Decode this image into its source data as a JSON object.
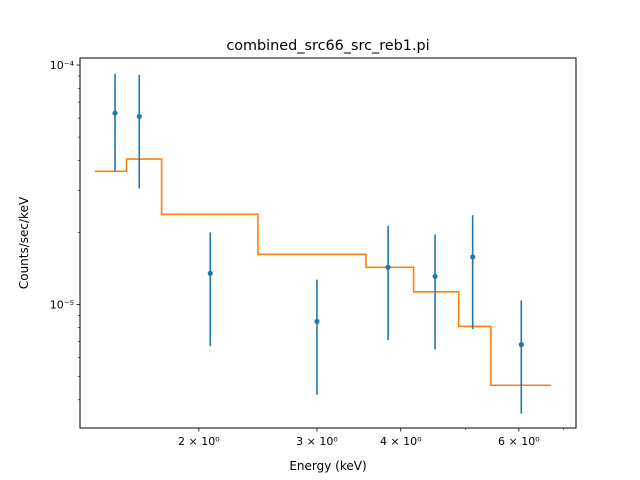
{
  "chart_data": {
    "type": "scatter",
    "title": "combined_src66_src_reb1.pi",
    "xlabel": "Energy (keV)",
    "ylabel": "Counts/sec/keV",
    "xscale": "log",
    "yscale": "log",
    "xlim": [
      1.33,
      7.3
    ],
    "ylim": [
      3.05e-06,
      0.000107
    ],
    "grid": false,
    "x_ticks": [
      {
        "value": 2,
        "label": "2 × 10⁰"
      },
      {
        "value": 3,
        "label": "3 × 10⁰"
      },
      {
        "value": 4,
        "label": "4 × 10⁰"
      },
      {
        "value": 6,
        "label": "6 × 10⁰"
      }
    ],
    "y_ticks": [
      {
        "value": 0.0001,
        "label": "10⁻⁴"
      },
      {
        "value": 1e-05,
        "label": "10⁻⁵"
      }
    ],
    "x_minor_ticks": [
      5,
      7
    ],
    "y_minor_ticks": [
      4e-06,
      5e-06,
      6e-06,
      7e-06,
      8e-06,
      9e-06,
      2e-05,
      3e-05,
      4e-05,
      5e-05,
      6e-05,
      7e-05,
      8e-05,
      9e-05
    ],
    "colors": {
      "data": "#1f77b4",
      "model": "#ff7f0e"
    },
    "series": [
      {
        "kind": "data_points",
        "points": [
          {
            "x": 1.5,
            "y": 6.3e-05,
            "ylow": 3.6e-05,
            "yhigh": 9.2e-05
          },
          {
            "x": 1.63,
            "y": 6.1e-05,
            "ylow": 3.05e-05,
            "yhigh": 9.1e-05
          },
          {
            "x": 2.08,
            "y": 1.35e-05,
            "ylow": 6.7e-06,
            "yhigh": 2e-05
          },
          {
            "x": 3.0,
            "y": 8.5e-06,
            "ylow": 4.2e-06,
            "yhigh": 1.27e-05
          },
          {
            "x": 3.83,
            "y": 1.43e-05,
            "ylow": 7.1e-06,
            "yhigh": 2.13e-05
          },
          {
            "x": 4.5,
            "y": 1.31e-05,
            "ylow": 6.5e-06,
            "yhigh": 1.96e-05
          },
          {
            "x": 5.12,
            "y": 1.58e-05,
            "ylow": 7.9e-06,
            "yhigh": 2.36e-05
          },
          {
            "x": 6.05,
            "y": 6.8e-06,
            "ylow": 3.5e-06,
            "yhigh": 1.04e-05
          }
        ]
      },
      {
        "kind": "model_step",
        "steps": [
          {
            "x0": 1.4,
            "x1": 1.56,
            "y": 3.6e-05
          },
          {
            "x0": 1.56,
            "x1": 1.76,
            "y": 4.05e-05
          },
          {
            "x0": 1.76,
            "x1": 2.45,
            "y": 2.38e-05
          },
          {
            "x0": 2.45,
            "x1": 3.55,
            "y": 1.62e-05
          },
          {
            "x0": 3.55,
            "x1": 4.18,
            "y": 1.43e-05
          },
          {
            "x0": 4.18,
            "x1": 4.88,
            "y": 1.13e-05
          },
          {
            "x0": 4.88,
            "x1": 5.45,
            "y": 8.1e-06
          },
          {
            "x0": 5.45,
            "x1": 6.7,
            "y": 4.6e-06
          }
        ]
      }
    ]
  }
}
